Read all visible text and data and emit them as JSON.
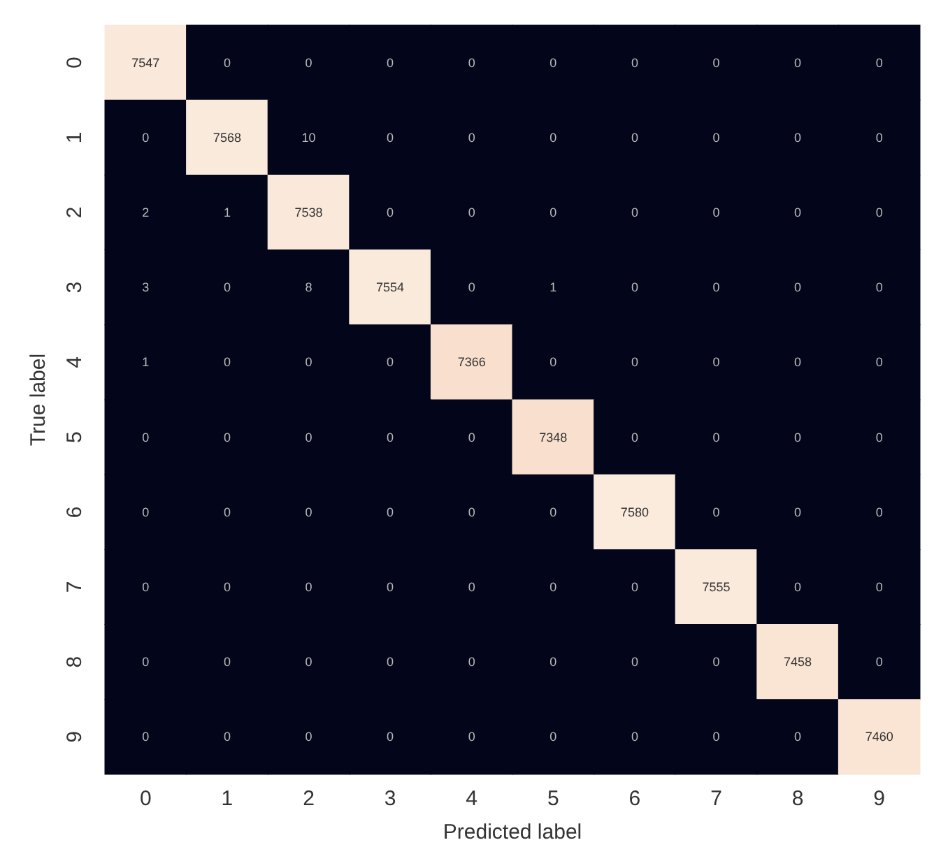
{
  "chart_data": {
    "type": "heatmap",
    "xlabel": "Predicted label",
    "ylabel": "True label",
    "categories": [
      "0",
      "1",
      "2",
      "3",
      "4",
      "5",
      "6",
      "7",
      "8",
      "9"
    ],
    "y_categories": [
      "0",
      "1",
      "2",
      "3",
      "4",
      "5",
      "6",
      "7",
      "8",
      "9"
    ],
    "cells": [
      [
        7547,
        0,
        0,
        0,
        0,
        0,
        0,
        0,
        0,
        0
      ],
      [
        0,
        7568,
        10,
        0,
        0,
        0,
        0,
        0,
        0,
        0
      ],
      [
        2,
        1,
        7538,
        0,
        0,
        0,
        0,
        0,
        0,
        0
      ],
      [
        3,
        0,
        8,
        7554,
        0,
        1,
        0,
        0,
        0,
        0
      ],
      [
        1,
        0,
        0,
        0,
        7366,
        0,
        0,
        0,
        0,
        0
      ],
      [
        0,
        0,
        0,
        0,
        0,
        7348,
        0,
        0,
        0,
        0
      ],
      [
        0,
        0,
        0,
        0,
        0,
        0,
        7580,
        0,
        0,
        0
      ],
      [
        0,
        0,
        0,
        0,
        0,
        0,
        0,
        7555,
        0,
        0
      ],
      [
        0,
        0,
        0,
        0,
        0,
        0,
        0,
        0,
        7458,
        0
      ],
      [
        0,
        0,
        0,
        0,
        0,
        0,
        0,
        0,
        0,
        7460
      ]
    ],
    "data_labels": true
  }
}
